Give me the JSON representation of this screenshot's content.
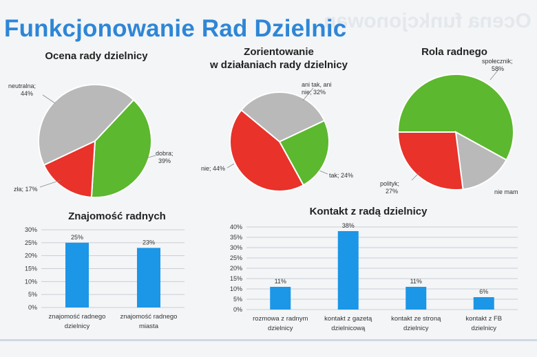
{
  "page": {
    "title": "Funkcjonowanie Rad Dzielnic",
    "ghost_text": "Ocena funkcjonowan"
  },
  "colors": {
    "green": "#5cb82e",
    "red": "#e8322a",
    "gray": "#b9b9b9",
    "blue": "#1c96e6",
    "title": "#2e86d6"
  },
  "chart_data": [
    {
      "type": "pie",
      "title": "Ocena rady dzielnicy",
      "slices": [
        {
          "label": "dobra;",
          "value": 39,
          "value_label": "39%",
          "color": "#5cb82e"
        },
        {
          "label": "zła; 17%",
          "value": 17,
          "value_label": "",
          "color": "#e8322a"
        },
        {
          "label": "neutralna;",
          "value": 44,
          "value_label": "44%",
          "color": "#b9b9b9"
        }
      ]
    },
    {
      "type": "pie",
      "title_lines": [
        "Zorientowanie",
        "w działaniach rady dzielnicy"
      ],
      "slices": [
        {
          "label": "ani tak, ani",
          "label2": "nie; 32%",
          "value": 32,
          "color": "#b9b9b9"
        },
        {
          "label": "tak; 24%",
          "label2": "",
          "value": 24,
          "color": "#5cb82e"
        },
        {
          "label": "nie; 44%",
          "label2": "",
          "value": 44,
          "color": "#e8322a"
        }
      ]
    },
    {
      "type": "pie",
      "title": "Rola radnego",
      "slices": [
        {
          "label": "społecznik;",
          "label2": "58%",
          "value": 58,
          "color": "#5cb82e"
        },
        {
          "label": "nie mam",
          "label2": "",
          "value": 15,
          "color": "#b9b9b9"
        },
        {
          "label": "polityk;",
          "label2": "27%",
          "value": 27,
          "color": "#e8322a"
        }
      ]
    },
    {
      "type": "bar",
      "title": "Znajomość radnych",
      "categories": [
        [
          "znajomość radnego",
          "dzielnicy"
        ],
        [
          "znajomość radnego",
          "miasta"
        ]
      ],
      "values": [
        25,
        23
      ],
      "value_labels": [
        "25%",
        "23%"
      ],
      "ylim": [
        0,
        30
      ],
      "yticks": [
        "0%",
        "5%",
        "10%",
        "15%",
        "20%",
        "25%",
        "30%"
      ],
      "grid": true
    },
    {
      "type": "bar",
      "title": "Kontakt z radą dzielnicy",
      "categories": [
        [
          "rozmowa z radnym",
          "dzielnicy"
        ],
        [
          "kontakt z gazetą",
          "dzielnicową"
        ],
        [
          "kontakt ze stroną",
          "dzielnicy"
        ],
        [
          "kontakt z FB",
          "dzielnicy"
        ]
      ],
      "values": [
        11,
        38,
        11,
        6
      ],
      "value_labels": [
        "11%",
        "38%",
        "11%",
        "6%"
      ],
      "ylim": [
        0,
        40
      ],
      "yticks": [
        "0%",
        "5%",
        "10%",
        "15%",
        "20%",
        "25%",
        "30%",
        "35%",
        "40%"
      ],
      "grid": true
    }
  ]
}
